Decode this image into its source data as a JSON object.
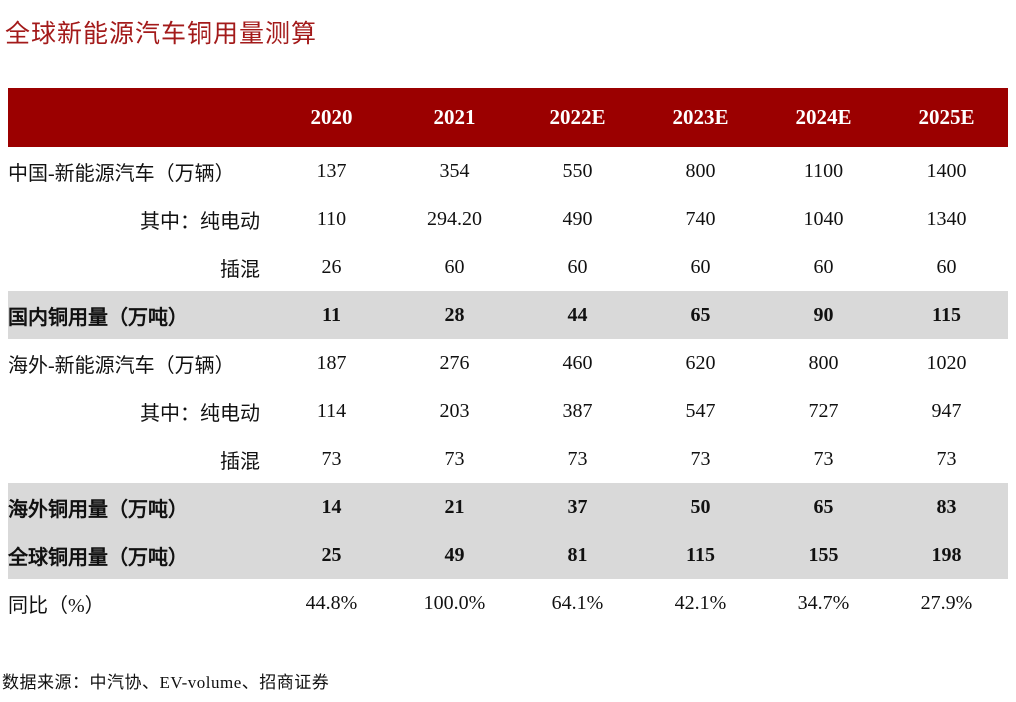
{
  "title": "全球新能源汽车铜用量测算",
  "colors": {
    "header_bg": "#9B0000",
    "title_text": "#A31A1A",
    "highlight_row_bg": "#D9D9D9",
    "body_text": "#111111",
    "header_text": "#FFFFFF"
  },
  "table": {
    "columns": [
      "2020",
      "2021",
      "2022E",
      "2023E",
      "2024E",
      "2025E"
    ],
    "rows": [
      {
        "label": "中国-新能源汽车（万辆）",
        "indent": false,
        "bold": false,
        "highlight": false,
        "values": [
          "137",
          "354",
          "550",
          "800",
          "1100",
          "1400"
        ]
      },
      {
        "label": "其中：纯电动",
        "indent": true,
        "bold": false,
        "highlight": false,
        "values": [
          "110",
          "294.20",
          "490",
          "740",
          "1040",
          "1340"
        ]
      },
      {
        "label": "插混",
        "indent": true,
        "bold": false,
        "highlight": false,
        "values": [
          "26",
          "60",
          "60",
          "60",
          "60",
          "60"
        ]
      },
      {
        "label": "国内铜用量（万吨）",
        "indent": false,
        "bold": true,
        "highlight": true,
        "values": [
          "11",
          "28",
          "44",
          "65",
          "90",
          "115"
        ]
      },
      {
        "label": "海外-新能源汽车（万辆）",
        "indent": false,
        "bold": false,
        "highlight": false,
        "values": [
          "187",
          "276",
          "460",
          "620",
          "800",
          "1020"
        ]
      },
      {
        "label": "其中：纯电动",
        "indent": true,
        "bold": false,
        "highlight": false,
        "values": [
          "114",
          "203",
          "387",
          "547",
          "727",
          "947"
        ]
      },
      {
        "label": "插混",
        "indent": true,
        "bold": false,
        "highlight": false,
        "values": [
          "73",
          "73",
          "73",
          "73",
          "73",
          "73"
        ]
      },
      {
        "label": "海外铜用量（万吨）",
        "indent": false,
        "bold": true,
        "highlight": true,
        "values": [
          "14",
          "21",
          "37",
          "50",
          "65",
          "83"
        ]
      },
      {
        "label": "全球铜用量（万吨）",
        "indent": false,
        "bold": true,
        "highlight": true,
        "values": [
          "25",
          "49",
          "81",
          "115",
          "155",
          "198"
        ]
      },
      {
        "label": "同比（%）",
        "indent": false,
        "bold": false,
        "highlight": false,
        "values": [
          "44.8%",
          "100.0%",
          "64.1%",
          "42.1%",
          "34.7%",
          "27.9%"
        ]
      }
    ]
  },
  "footer": {
    "source": "数据来源：中汽协、EV-volume、招商证券"
  }
}
